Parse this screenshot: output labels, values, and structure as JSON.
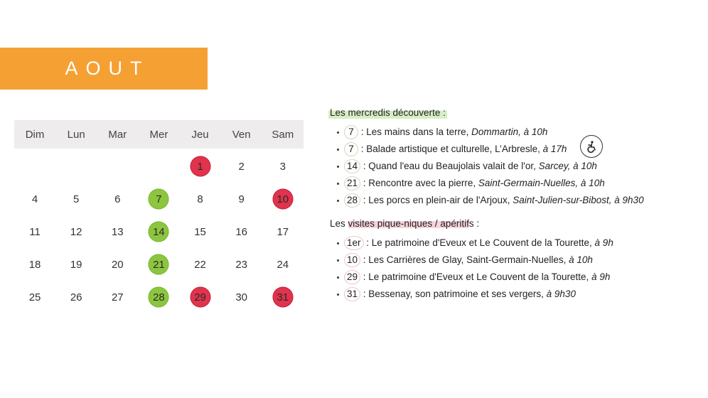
{
  "month": {
    "title": "AOUT",
    "color": "#f5a033"
  },
  "calendar": {
    "weekdays": [
      "Dim",
      "Lun",
      "Mar",
      "Mer",
      "Jeu",
      "Ven",
      "Sam"
    ],
    "colors": {
      "decouverte": "#8cc63f",
      "pique_nique": "#e0334d"
    },
    "cells": [
      {
        "day": "",
        "mark": ""
      },
      {
        "day": "",
        "mark": ""
      },
      {
        "day": "",
        "mark": ""
      },
      {
        "day": "",
        "mark": ""
      },
      {
        "day": "1",
        "mark": "red"
      },
      {
        "day": "2",
        "mark": ""
      },
      {
        "day": "3",
        "mark": ""
      },
      {
        "day": "4",
        "mark": ""
      },
      {
        "day": "5",
        "mark": ""
      },
      {
        "day": "6",
        "mark": ""
      },
      {
        "day": "7",
        "mark": "green"
      },
      {
        "day": "8",
        "mark": ""
      },
      {
        "day": "9",
        "mark": ""
      },
      {
        "day": "10",
        "mark": "red"
      },
      {
        "day": "11",
        "mark": ""
      },
      {
        "day": "12",
        "mark": ""
      },
      {
        "day": "13",
        "mark": ""
      },
      {
        "day": "14",
        "mark": "green"
      },
      {
        "day": "15",
        "mark": ""
      },
      {
        "day": "16",
        "mark": ""
      },
      {
        "day": "17",
        "mark": ""
      },
      {
        "day": "18",
        "mark": ""
      },
      {
        "day": "19",
        "mark": ""
      },
      {
        "day": "20",
        "mark": ""
      },
      {
        "day": "21",
        "mark": "green"
      },
      {
        "day": "22",
        "mark": ""
      },
      {
        "day": "23",
        "mark": ""
      },
      {
        "day": "24",
        "mark": ""
      },
      {
        "day": "25",
        "mark": ""
      },
      {
        "day": "26",
        "mark": ""
      },
      {
        "day": "27",
        "mark": ""
      },
      {
        "day": "28",
        "mark": "green"
      },
      {
        "day": "29",
        "mark": "red"
      },
      {
        "day": "30",
        "mark": ""
      },
      {
        "day": "31",
        "mark": "red"
      }
    ]
  },
  "decouverte": {
    "title": "Les mercredis découverte :",
    "items": [
      {
        "day": "7",
        "text": " : Les mains dans la terre, ",
        "place": "Dommartin, à 10h"
      },
      {
        "day": "7",
        "text": " : Balade artistique et culturelle, L’Arbresle, ",
        "place": "à 17h",
        "icon": "accessibility-icon"
      },
      {
        "day": "14",
        "text": " : Quand l'eau du Beaujolais valait de l'or, ",
        "place": "Sarcey, à 10h"
      },
      {
        "day": "21",
        "text": " : Rencontre avec la pierre, ",
        "place": "Saint-Germain-Nuelles, à 10h"
      },
      {
        "day": "28",
        "text": " : Les porcs en plein-air de l'Arjoux, ",
        "place": "Saint-Julien-sur-Bibost, à 9h30"
      }
    ]
  },
  "pique_nique": {
    "title_pre": "Les ",
    "title_hl": "visites pique-niques / apéritif",
    "title_post": "s :",
    "items": [
      {
        "day": "1er",
        "text": " : Le patrimoine d'Eveux et Le Couvent de la Tourette, ",
        "place": "à 9h"
      },
      {
        "day": "10",
        "text": " : Les Carrières de Glay, Saint-Germain-Nuelles, ",
        "place": "à 10h"
      },
      {
        "day": "29",
        "text": " : Le patrimoine d'Eveux et Le Couvent de la Tourette, ",
        "place": "à 9h"
      },
      {
        "day": "31",
        "text": " : Bessenay, son patrimoine et ses vergers, ",
        "place": "à 9h30"
      }
    ]
  }
}
